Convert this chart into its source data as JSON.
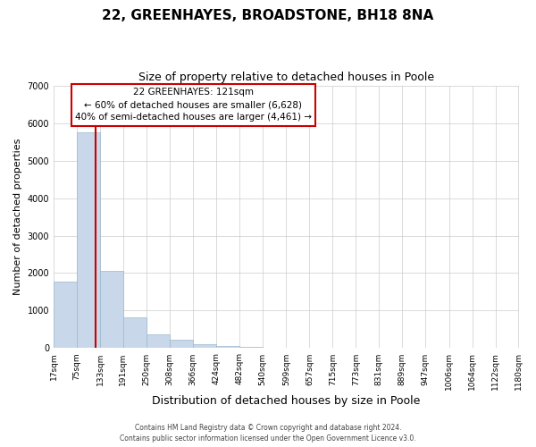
{
  "title_line1": "22, GREENHAYES, BROADSTONE, BH18 8NA",
  "title_line2": "Size of property relative to detached houses in Poole",
  "xlabel": "Distribution of detached houses by size in Poole",
  "ylabel": "Number of detached properties",
  "bar_color": "#c8d8ea",
  "bar_edge_color": "#9ab8cc",
  "marker_line_color": "#cc0000",
  "marker_value": 121,
  "annotation_title": "22 GREENHAYES: 121sqm",
  "annotation_line2": "← 60% of detached houses are smaller (6,628)",
  "annotation_line3": "40% of semi-detached houses are larger (4,461) →",
  "annotation_box_color": "#ffffff",
  "annotation_box_edge": "#cc0000",
  "ylim": [
    0,
    7000
  ],
  "yticks": [
    0,
    1000,
    2000,
    3000,
    4000,
    5000,
    6000,
    7000
  ],
  "bin_edges": [
    17,
    75,
    133,
    191,
    250,
    308,
    366,
    424,
    482,
    540,
    599,
    657,
    715,
    773,
    831,
    889,
    947,
    1006,
    1064,
    1122,
    1180
  ],
  "bin_labels": [
    "17sqm",
    "75sqm",
    "133sqm",
    "191sqm",
    "250sqm",
    "308sqm",
    "366sqm",
    "424sqm",
    "482sqm",
    "540sqm",
    "599sqm",
    "657sqm",
    "715sqm",
    "773sqm",
    "831sqm",
    "889sqm",
    "947sqm",
    "1006sqm",
    "1064sqm",
    "1122sqm",
    "1180sqm"
  ],
  "bar_heights": [
    1780,
    5750,
    2060,
    810,
    365,
    220,
    110,
    55,
    40,
    0,
    0,
    0,
    0,
    0,
    0,
    0,
    0,
    0,
    0,
    0
  ],
  "footer_line1": "Contains HM Land Registry data © Crown copyright and database right 2024.",
  "footer_line2": "Contains public sector information licensed under the Open Government Licence v3.0.",
  "bg_color": "#ffffff",
  "grid_color": "#cccccc",
  "title_fontsize": 11,
  "subtitle_fontsize": 9,
  "ylabel_fontsize": 8,
  "xlabel_fontsize": 9,
  "tick_fontsize": 6.5,
  "annotation_fontsize": 7.5,
  "footer_fontsize": 5.5
}
